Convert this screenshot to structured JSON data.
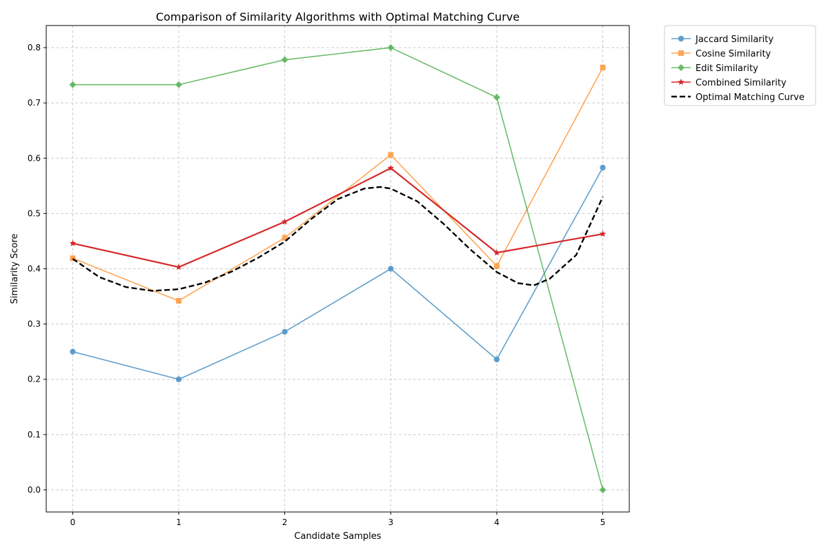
{
  "chart_data": {
    "type": "line",
    "title": "Comparison of Similarity Algorithms with Optimal Matching Curve",
    "xlabel": "Candidate Samples",
    "ylabel": "Similarity Score",
    "x": [
      0,
      1,
      2,
      3,
      4,
      5
    ],
    "xlim": [
      -0.25,
      5.25
    ],
    "ylim": [
      -0.04,
      0.84
    ],
    "xticks": [
      "0",
      "1",
      "2",
      "3",
      "4",
      "5"
    ],
    "yticks": [
      "0.0",
      "0.1",
      "0.2",
      "0.3",
      "0.4",
      "0.5",
      "0.6",
      "0.7",
      "0.8"
    ],
    "grid": true,
    "legend_position": "outside-top-right",
    "series": [
      {
        "name": "Jaccard Similarity",
        "values": [
          0.25,
          0.2,
          0.286,
          0.4,
          0.236,
          0.583
        ],
        "color": "#1f77b4",
        "marker": "circle",
        "opacity": 0.7,
        "style": "solid"
      },
      {
        "name": "Cosine Similarity",
        "values": [
          0.419,
          0.342,
          0.456,
          0.606,
          0.405,
          0.764
        ],
        "color": "#ff7f0e",
        "marker": "square",
        "opacity": 0.7,
        "style": "solid"
      },
      {
        "name": "Edit Similarity",
        "values": [
          0.733,
          0.733,
          0.778,
          0.8,
          0.71,
          0.0
        ],
        "color": "#2ca02c",
        "marker": "diamond",
        "opacity": 0.7,
        "style": "solid"
      },
      {
        "name": "Combined Similarity",
        "values": [
          0.446,
          0.403,
          0.485,
          0.582,
          0.429,
          0.463
        ],
        "color": "#d62728",
        "marker": "star",
        "opacity": 1.0,
        "style": "solid"
      }
    ],
    "optimal_curve": {
      "name": "Optimal Matching Curve",
      "color": "#000000",
      "style": "dashed",
      "x": [
        0,
        0.25,
        0.5,
        0.75,
        1.0,
        1.25,
        1.5,
        1.75,
        2.0,
        2.25,
        2.5,
        2.75,
        2.9,
        3.0,
        3.25,
        3.5,
        3.75,
        4.0,
        4.2,
        4.35,
        4.5,
        4.75,
        5.0
      ],
      "y": [
        0.418,
        0.385,
        0.367,
        0.36,
        0.363,
        0.375,
        0.395,
        0.42,
        0.449,
        0.49,
        0.526,
        0.545,
        0.548,
        0.545,
        0.522,
        0.481,
        0.435,
        0.394,
        0.374,
        0.37,
        0.382,
        0.425,
        0.53
      ]
    }
  }
}
